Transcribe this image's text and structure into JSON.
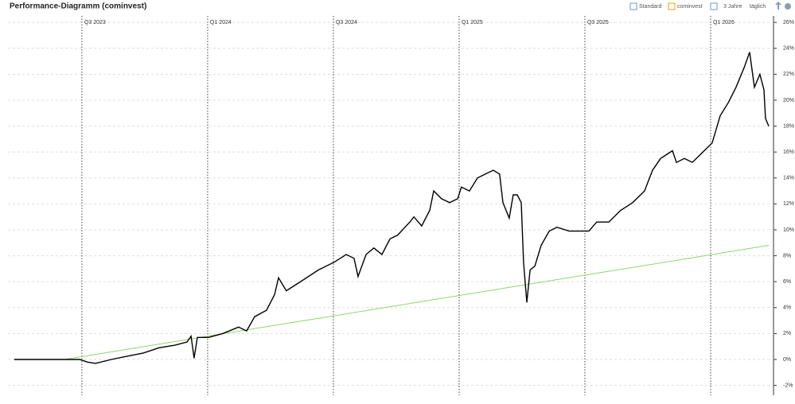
{
  "header": {
    "title": "Performance-Diagramm (cominvest)",
    "toolbar": [
      "Standard",
      "cominvest",
      "3 Jahre",
      "täglich"
    ]
  },
  "chart_data": {
    "type": "line",
    "xlim": [
      2023.206,
      2026.25
    ],
    "ylim": [
      -2.76,
      26.5
    ],
    "xticks": [
      {
        "value": 2023.5,
        "label": "Q3 2023"
      },
      {
        "value": 2024.0,
        "label": "Q1 2024"
      },
      {
        "value": 2024.5,
        "label": "Q3 2024"
      },
      {
        "value": 2025.0,
        "label": "Q1 2025"
      },
      {
        "value": 2025.5,
        "label": "Q3 2025"
      },
      {
        "value": 2026.0,
        "label": "Q1 2026"
      }
    ],
    "yticks": [
      {
        "value": -2,
        "label": "-2%"
      },
      {
        "value": 0,
        "label": "0%"
      },
      {
        "value": 2,
        "label": "2%"
      },
      {
        "value": 4,
        "label": "4%"
      },
      {
        "value": 6,
        "label": "6%"
      },
      {
        "value": 8,
        "label": "8%"
      },
      {
        "value": 10,
        "label": "10%"
      },
      {
        "value": 12,
        "label": "12%"
      },
      {
        "value": 14,
        "label": "14%"
      },
      {
        "value": 16,
        "label": "16%"
      },
      {
        "value": 18,
        "label": "18%"
      },
      {
        "value": 20,
        "label": "20%"
      },
      {
        "value": 22,
        "label": "22%"
      },
      {
        "value": 24,
        "label": "24%"
      },
      {
        "value": 26,
        "label": "26%"
      }
    ],
    "grid": true,
    "series": [
      {
        "color": "#000000",
        "x": [
          2023.231,
          2023.491,
          2023.522,
          2023.554,
          2023.617,
          2023.68,
          2023.744,
          2023.807,
          2023.87,
          2023.918,
          2023.934,
          2023.946,
          2023.959,
          2024.003,
          2024.06,
          2024.123,
          2024.155,
          2024.187,
          2024.234,
          2024.266,
          2024.282,
          2024.313,
          2024.377,
          2024.44,
          2024.503,
          2024.551,
          2024.582,
          2024.598,
          2024.63,
          2024.661,
          2024.693,
          2024.725,
          2024.756,
          2024.804,
          2024.82,
          2024.851,
          2024.883,
          2024.899,
          2024.93,
          2024.962,
          2024.994,
          2025.009,
          2025.041,
          2025.073,
          2025.104,
          2025.136,
          2025.161,
          2025.174,
          2025.199,
          2025.215,
          2025.231,
          2025.247,
          2025.256,
          2025.269,
          2025.282,
          2025.301,
          2025.326,
          2025.358,
          2025.389,
          2025.437,
          2025.484,
          2025.516,
          2025.547,
          2025.595,
          2025.642,
          2025.69,
          2025.737,
          2025.769,
          2025.801,
          2025.848,
          2025.864,
          2025.896,
          2025.927,
          2025.959,
          2026.006,
          2026.038,
          2026.07,
          2026.101,
          2026.133,
          2026.155,
          2026.174,
          2026.196,
          2026.212,
          2026.218,
          2026.231
        ],
        "values": [
          0,
          0,
          -0.2,
          -0.3,
          0,
          0.25,
          0.5,
          0.9,
          1.1,
          1.35,
          1.8,
          0.1,
          1.7,
          1.7,
          2.0,
          2.5,
          2.2,
          3.3,
          3.8,
          5.0,
          6.3,
          5.3,
          6.1,
          6.9,
          7.5,
          8.1,
          7.8,
          6.4,
          8.1,
          8.6,
          8.1,
          9.3,
          9.6,
          10.6,
          11.0,
          10.3,
          11.5,
          13.0,
          12.4,
          12.1,
          12.4,
          13.3,
          13.0,
          14.0,
          14.3,
          14.6,
          14.3,
          12.1,
          10.9,
          12.7,
          12.7,
          12.1,
          7.5,
          4.4,
          6.9,
          7.2,
          8.8,
          9.9,
          10.2,
          9.9,
          9.9,
          9.9,
          10.6,
          10.6,
          11.5,
          12.1,
          13.0,
          14.6,
          15.5,
          16.1,
          15.2,
          15.5,
          15.2,
          15.8,
          16.7,
          18.8,
          19.8,
          21.0,
          22.5,
          23.7,
          21.0,
          22.0,
          20.8,
          18.6,
          18.0
        ]
      },
      {
        "color": "#8fd66a",
        "x": [
          2023.231,
          2023.43,
          2026.231
        ],
        "values": [
          0,
          0,
          8.8
        ]
      }
    ]
  }
}
